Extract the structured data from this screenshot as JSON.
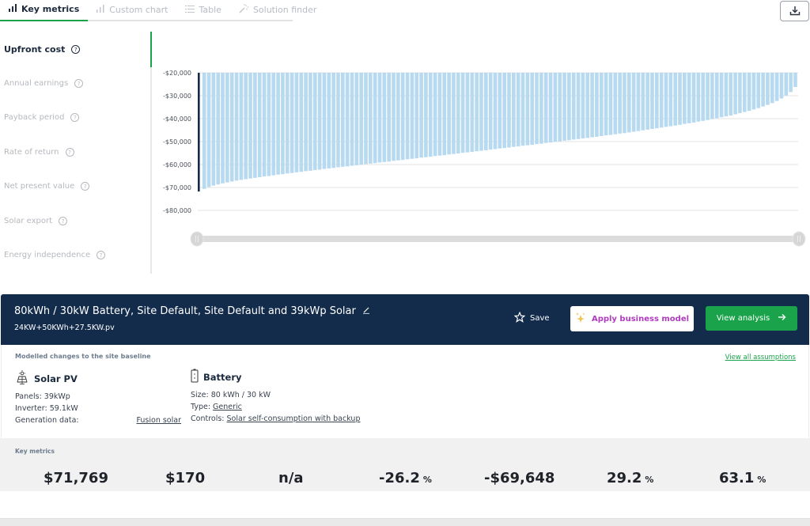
{
  "tabs": [
    {
      "label": "Key metrics",
      "icon": "bar-chart-icon",
      "active": true
    },
    {
      "label": "Custom chart",
      "icon": "bar-chart-icon",
      "active": false
    },
    {
      "label": "Table",
      "icon": "list-icon",
      "active": false
    },
    {
      "label": "Solution finder",
      "icon": "magic-wand-icon",
      "active": false
    }
  ],
  "toolbar": {
    "download_icon": "download-icon"
  },
  "sidebar": {
    "items": [
      {
        "label": "Upfront cost",
        "active": true
      },
      {
        "label": "Annual earnings",
        "active": false
      },
      {
        "label": "Payback period",
        "active": false
      },
      {
        "label": "Rate of return",
        "active": false
      },
      {
        "label": "Net present value",
        "active": false
      },
      {
        "label": "Solar export",
        "active": false
      },
      {
        "label": "Energy independence",
        "active": false
      }
    ],
    "help_glyph": "?"
  },
  "colors": {
    "accent": "#1aa34a",
    "banner": "#132c4c",
    "bar": "#b7daf0",
    "bar_selected": "#132c4c",
    "magenta": "#b03bbf"
  },
  "chart_data": {
    "type": "bar",
    "title": "Upfront cost",
    "xlabel": "",
    "ylabel": "",
    "ylim": [
      -80000,
      -20000
    ],
    "baseline": -20000,
    "yticks": [
      -20000,
      -30000,
      -40000,
      -50000,
      -60000,
      -70000,
      -80000
    ],
    "ytick_labels": [
      "-$20,000",
      "-$30,000",
      "-$40,000",
      "-$50,000",
      "-$60,000",
      "-$70,000",
      "-$80,000"
    ],
    "grid": true,
    "selected_index": 0,
    "values": [
      -71769,
      -70600,
      -69800,
      -69200,
      -68700,
      -68200,
      -67800,
      -67400,
      -67000,
      -66700,
      -66400,
      -66100,
      -65800,
      -65500,
      -65200,
      -65000,
      -64700,
      -64400,
      -64200,
      -63900,
      -63700,
      -63400,
      -63200,
      -62900,
      -62700,
      -62400,
      -62200,
      -61900,
      -61700,
      -61500,
      -61200,
      -61000,
      -60800,
      -60500,
      -60300,
      -60100,
      -59800,
      -59600,
      -59400,
      -59100,
      -58900,
      -58700,
      -58400,
      -58200,
      -58000,
      -57700,
      -57500,
      -57300,
      -57000,
      -56800,
      -56600,
      -56300,
      -56100,
      -55900,
      -55600,
      -55400,
      -55200,
      -54900,
      -54700,
      -54500,
      -54200,
      -54000,
      -53800,
      -53500,
      -53300,
      -53000,
      -52800,
      -52600,
      -52300,
      -52100,
      -51800,
      -51600,
      -51400,
      -51100,
      -50900,
      -50600,
      -50400,
      -50100,
      -49900,
      -49600,
      -49400,
      -49100,
      -48900,
      -48600,
      -48400,
      -48100,
      -47900,
      -47600,
      -47300,
      -47100,
      -46800,
      -46500,
      -46300,
      -46000,
      -45700,
      -45400,
      -45100,
      -44800,
      -44500,
      -44200,
      -43900,
      -43600,
      -43300,
      -43000,
      -42700,
      -42300,
      -42000,
      -41700,
      -41300,
      -41000,
      -40600,
      -40200,
      -39800,
      -39400,
      -39000,
      -38600,
      -38100,
      -37600,
      -37100,
      -36600,
      -36000,
      -35400,
      -34700,
      -34000,
      -33200,
      -32300,
      -31200,
      -29900,
      -28400,
      -26200
    ],
    "range_slider": {
      "start": 0,
      "end": 1
    }
  },
  "scenario": {
    "title": "80kWh / 30kW Battery, Site Default, Site Default and 39kWp Solar",
    "subtitle": "24KW+50KWh+27.5KW.pv",
    "save_label": "Save",
    "apply_label": "Apply business model",
    "view_label": "View analysis"
  },
  "details": {
    "heading": "Modelled changes to the site baseline",
    "assumptions_link": "View all assumptions",
    "solar": {
      "title": "Solar PV",
      "panels": "Panels: 39kWp",
      "inverter": "Inverter: 59.1kW",
      "generation_label": "Generation data:",
      "generation_value": "Fusion solar"
    },
    "battery": {
      "title": "Battery",
      "size": "Size: 80 kWh / 30 kW",
      "type_label": "Type: ",
      "type_value": "Generic",
      "controls_label": "Controls: ",
      "controls_value": "Solar self-consumption with backup"
    }
  },
  "metrics": {
    "label": "Key metrics",
    "values": [
      {
        "value": "$71,769",
        "unit": ""
      },
      {
        "value": "$170",
        "unit": ""
      },
      {
        "value": "n/a",
        "unit": ""
      },
      {
        "value": "-26.2",
        "unit": "%"
      },
      {
        "value": "-$69,648",
        "unit": ""
      },
      {
        "value": "29.2",
        "unit": "%"
      },
      {
        "value": "63.1",
        "unit": "%"
      }
    ]
  }
}
